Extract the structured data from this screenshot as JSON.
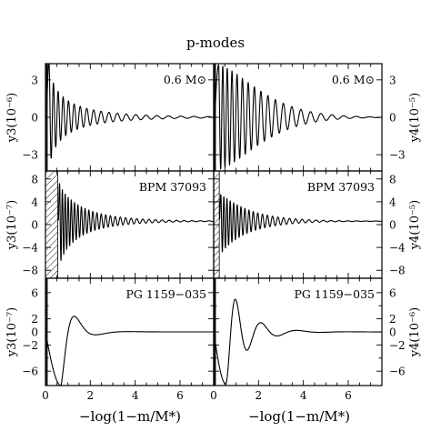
{
  "chart_data": {
    "type": "line",
    "title": "p-modes",
    "xlabel": "−log(1−m/M*)",
    "xlim": [
      0,
      7.5
    ],
    "xticks": [
      0,
      2,
      4,
      6
    ],
    "grid": false,
    "panels": [
      {
        "row": 0,
        "col": 0,
        "label": "0.6 M⊙",
        "ylabel": "y3(10⁻⁶)",
        "ylim": [
          -4.3,
          4.3
        ],
        "yticks": [
          -3,
          0,
          3
        ],
        "hatch_to": 0,
        "series": [
          {
            "values": {
              "A": 4.6,
              "x0": 0.05,
              "x1": 0.16,
              "period0": 0.19,
              "k": 0.34,
              "tau": 0.6,
              "p": 0.6,
              "cut": 0.03
            }
          }
        ]
      },
      {
        "row": 0,
        "col": 1,
        "label": "0.6 M⊙",
        "ylabel": "y4(10⁻⁵)",
        "ylim": [
          -4.3,
          4.3
        ],
        "yticks": [
          -3,
          0,
          3
        ],
        "hatch_to": 0,
        "series": [
          {
            "values": {
              "A": 4.2,
              "x0": 0.05,
              "x1": 0.22,
              "period0": 0.18,
              "k": 0.36,
              "tau": 2.4,
              "p": 1.5,
              "cut": 0.02
            }
          }
        ]
      },
      {
        "row": 1,
        "col": 0,
        "label": "BPM 37093",
        "ylabel": "y3(10⁻⁷)",
        "ylim": [
          -9.4,
          9.4
        ],
        "yticks": [
          -8,
          -4,
          0,
          4,
          8
        ],
        "hatch_to": 0.55,
        "series": [
          {
            "values": {
              "A": 7.2,
              "x0": 0.58,
              "x1": 0.63,
              "period0": 0.12,
              "k": 0.34,
              "tau": 0.95,
              "p": 0.8,
              "offset": 0.6,
              "cut": 0.0
            }
          }
        ]
      },
      {
        "row": 1,
        "col": 1,
        "label": "BPM 37093",
        "ylabel": "y4(10⁻⁵)",
        "ylim": [
          -9.4,
          9.4
        ],
        "yticks": [
          -8,
          -4,
          0,
          4,
          8
        ],
        "hatch_to": 0.25,
        "series": [
          {
            "values": {
              "A": 5.2,
              "x0": 0.26,
              "x1": 0.32,
              "period0": 0.13,
              "k": 0.35,
              "tau": 1.3,
              "p": 1.0,
              "offset": 0.6,
              "cut": 0.0
            }
          }
        ]
      },
      {
        "row": 2,
        "col": 0,
        "label": "PG 1159−035",
        "ylabel": "y3(10⁻⁷)",
        "ylim": [
          -8.2,
          8.2
        ],
        "yticks": [
          -6,
          -4,
          -2,
          0,
          2,
          4,
          6
        ],
        "yticklabels": [
          "−6",
          "",
          "−2",
          "0",
          "2",
          "",
          "6"
        ],
        "hatch_to": 0,
        "series": [
          {
            "values": {
              "A": -8.2,
              "x0": 0.0,
              "x1": 0.7,
              "period0": 1.1,
              "k": 0.8,
              "tau": 0.5,
              "p": 0.9,
              "cut": 0.02
            }
          }
        ]
      },
      {
        "row": 2,
        "col": 1,
        "label": "PG 1159−035",
        "ylabel": "y4(10⁻⁶)",
        "ylim": [
          -8.2,
          8.2
        ],
        "yticks": [
          -6,
          -4,
          -2,
          0,
          2,
          4,
          6
        ],
        "yticklabels": [
          "−6",
          "",
          "−2",
          "0",
          "2",
          "",
          "6"
        ],
        "hatch_to": 0,
        "series": [
          {
            "values": {
              "A": -8.0,
              "x0": 0.0,
              "x1": 0.55,
              "period0": 0.8,
              "k": 0.45,
              "tau": 0.9,
              "p": 1.0,
              "cut": 0.02
            }
          }
        ]
      }
    ]
  }
}
